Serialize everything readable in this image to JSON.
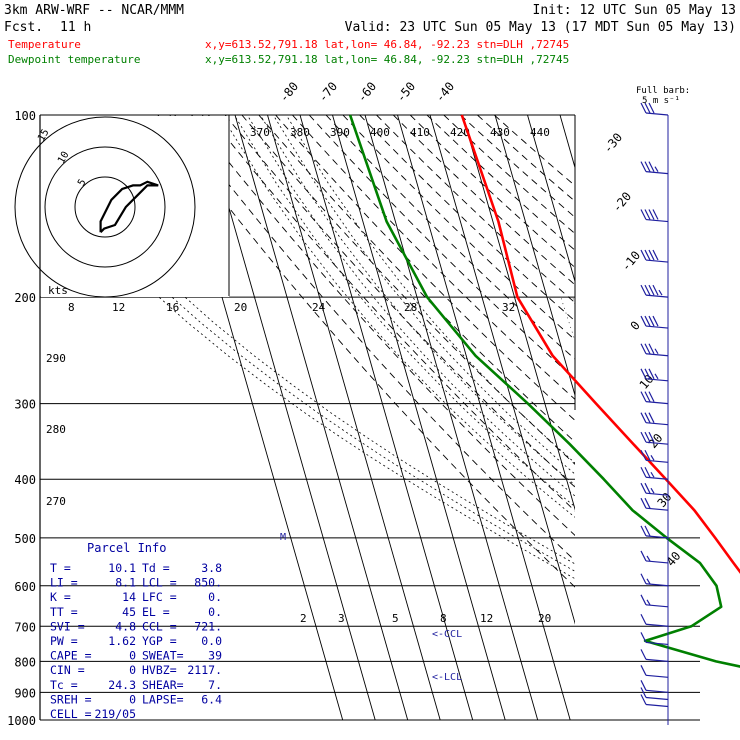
{
  "header": {
    "model": "3km ARW-WRF -- NCAR/MMM",
    "init": "Init: 12 UTC Sun 05 May 13",
    "fcst_label": "Fcst.",
    "fcst_value": "11 h",
    "valid": "Valid: 23 UTC Sun 05 May 13 (17 MDT Sun 05 May 13)",
    "temp_label": "Temperature",
    "dew_label": "Dewpoint temperature",
    "location": "x,y=613.52,791.18   lat,lon= 46.84, -92.23  stn=DLH ,72745"
  },
  "colors": {
    "temperature": "#ff0000",
    "dewpoint": "#008000",
    "barbs": "#1f1f9f",
    "axes": "#000000",
    "parcel_text": "#0000a0"
  },
  "barb_legend": {
    "title": "Full barb:",
    "value": "5 m s⁻¹"
  },
  "hodograph": {
    "units": "kts",
    "rings": [
      "5",
      "10",
      "15"
    ]
  },
  "parcel": {
    "title": "Parcel Info",
    "rows": [
      [
        "T  =",
        "10.1",
        "Td =",
        "3.8"
      ],
      [
        "LI =",
        "8.1",
        "LCL =",
        "850."
      ],
      [
        "K  =",
        "14",
        "LFC =",
        "0."
      ],
      [
        "TT =",
        "45",
        "EL  =",
        "0."
      ],
      [
        "SVI =",
        "4.8",
        "CCL =",
        "721."
      ],
      [
        "PW =",
        "1.62",
        "YGP =",
        "0.0"
      ],
      [
        "CAPE =",
        "0",
        "SWEAT=",
        "39"
      ],
      [
        "CIN =",
        "0",
        "HVBZ=",
        "2117."
      ],
      [
        "Tc =",
        "24.3",
        "SHEAR=",
        "7."
      ],
      [
        "SREH =",
        "0",
        "LAPSE=",
        "6.4"
      ],
      [
        "CELL =",
        "219/05",
        "",
        ""
      ]
    ]
  },
  "annotations": {
    "ccl": "<-CCL",
    "lcl": "<-LCL",
    "marker": "M"
  },
  "chart_data": {
    "type": "line",
    "title": "",
    "xlabel": "",
    "ylabel": "",
    "y_scale": "log-pressure",
    "pressure_range_hpa": [
      1000,
      100
    ],
    "pressure_ticks": [
      "100",
      "200",
      "300",
      "400",
      "500",
      "600",
      "700",
      "800",
      "900",
      "1000"
    ],
    "isotherm_labels": [
      "-80",
      "-70",
      "-60",
      "-50",
      "-40",
      "-30",
      "-20",
      "-10",
      "0",
      "10",
      "20",
      "30",
      "40"
    ],
    "theta_labels_top": [
      "370",
      "380",
      "390",
      "400",
      "410",
      "420",
      "430",
      "440"
    ],
    "theta_labels_left": [
      "290",
      "280",
      "270"
    ],
    "mixing_ratio_labels_top": [
      "8",
      "12",
      "16",
      "20",
      "24",
      "28",
      "32"
    ],
    "mixing_ratio_labels_bottom": [
      "2",
      "3",
      "5",
      "8",
      "12",
      "20"
    ],
    "series": [
      {
        "name": "Temperature",
        "units": "C",
        "points": [
          [
            100,
            -50.2
          ],
          [
            150,
            -48.3
          ],
          [
            200,
            -49.1
          ],
          [
            250,
            -43.4
          ],
          [
            300,
            -34.2
          ],
          [
            350,
            -26.3
          ],
          [
            400,
            -19.4
          ],
          [
            450,
            -13.4
          ],
          [
            500,
            -9.4
          ],
          [
            550,
            -6.0
          ],
          [
            600,
            -2.7
          ],
          [
            650,
            -0.7
          ],
          [
            700,
            3.1
          ],
          [
            750,
            6.6
          ],
          [
            800,
            10.6
          ],
          [
            850,
            12.8
          ],
          [
            900,
            13.0
          ],
          [
            925,
            12.3
          ],
          [
            950,
            10.1
          ]
        ]
      },
      {
        "name": "Dewpoint temperature",
        "units": "C",
        "points": [
          [
            100,
            -84.6
          ],
          [
            150,
            -82.7
          ],
          [
            200,
            -76.9
          ],
          [
            250,
            -67.1
          ],
          [
            300,
            -55.2
          ],
          [
            350,
            -45.9
          ],
          [
            400,
            -38.5
          ],
          [
            450,
            -32.4
          ],
          [
            500,
            -24.3
          ],
          [
            550,
            -16.3
          ],
          [
            600,
            -13.2
          ],
          [
            650,
            -13.6
          ],
          [
            700,
            -24.5
          ],
          [
            740,
            -40.0
          ],
          [
            800,
            -20.0
          ],
          [
            850,
            1.6
          ],
          [
            900,
            4.4
          ],
          [
            925,
            4.4
          ],
          [
            950,
            3.8
          ]
        ]
      }
    ],
    "wind_barbs": [
      {
        "p": 100,
        "speed_kt": 30
      },
      {
        "p": 125,
        "speed_kt": 35
      },
      {
        "p": 150,
        "speed_kt": 40
      },
      {
        "p": 175,
        "speed_kt": 40
      },
      {
        "p": 200,
        "speed_kt": 45
      },
      {
        "p": 225,
        "speed_kt": 40
      },
      {
        "p": 250,
        "speed_kt": 35
      },
      {
        "p": 275,
        "speed_kt": 35
      },
      {
        "p": 300,
        "speed_kt": 30
      },
      {
        "p": 325,
        "speed_kt": 30
      },
      {
        "p": 350,
        "speed_kt": 30
      },
      {
        "p": 375,
        "speed_kt": 25
      },
      {
        "p": 400,
        "speed_kt": 25
      },
      {
        "p": 425,
        "speed_kt": 25
      },
      {
        "p": 450,
        "speed_kt": 20
      },
      {
        "p": 500,
        "speed_kt": 20
      },
      {
        "p": 550,
        "speed_kt": 15
      },
      {
        "p": 600,
        "speed_kt": 15
      },
      {
        "p": 650,
        "speed_kt": 15
      },
      {
        "p": 700,
        "speed_kt": 10
      },
      {
        "p": 750,
        "speed_kt": 10
      },
      {
        "p": 800,
        "speed_kt": 10
      },
      {
        "p": 850,
        "speed_kt": 10
      },
      {
        "p": 900,
        "speed_kt": 10
      },
      {
        "p": 925,
        "speed_kt": 10
      },
      {
        "p": 950,
        "speed_kt": 10
      }
    ],
    "hodograph_points": [
      [
        -4,
        -7
      ],
      [
        -4,
        -4
      ],
      [
        -1,
        2
      ],
      [
        2,
        5
      ],
      [
        5,
        6
      ],
      [
        7,
        6
      ],
      [
        9,
        7
      ],
      [
        12,
        6
      ],
      [
        9,
        6
      ],
      [
        6,
        3
      ],
      [
        3,
        0
      ],
      [
        0,
        -5
      ],
      [
        -3,
        -6
      ],
      [
        -4,
        -7
      ]
    ]
  }
}
